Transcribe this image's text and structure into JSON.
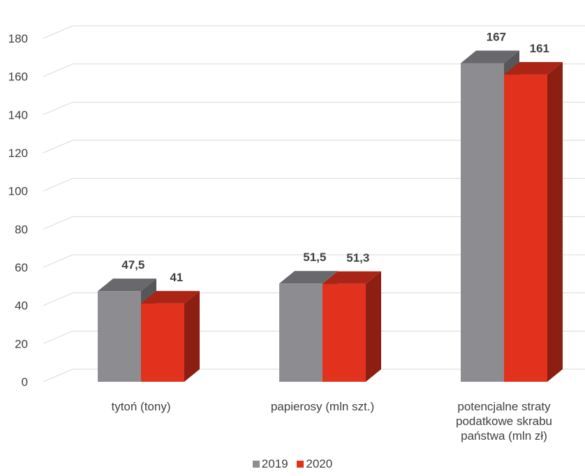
{
  "chart_data": {
    "type": "bar",
    "categories": [
      [
        "tytoń (tony)"
      ],
      [
        "papierosy (mln szt.)"
      ],
      [
        "potencjalne straty",
        "podatkowe skrabu",
        "państwa (mln zł)"
      ]
    ],
    "series": [
      {
        "name": "2019",
        "values": [
          47.5,
          51.5,
          167
        ],
        "labels": [
          "47,5",
          "51,5",
          "167"
        ],
        "color": "#8C8C91"
      },
      {
        "name": "2020",
        "values": [
          41,
          51.3,
          161
        ],
        "labels": [
          "41",
          "51,3",
          "161"
        ],
        "color": "#E2311D"
      }
    ],
    "ylim": [
      0,
      180
    ],
    "yticks": [
      0,
      20,
      40,
      60,
      80,
      100,
      120,
      140,
      160,
      180
    ],
    "grid": true,
    "legend_position": "bottom",
    "style": "3d-column"
  }
}
